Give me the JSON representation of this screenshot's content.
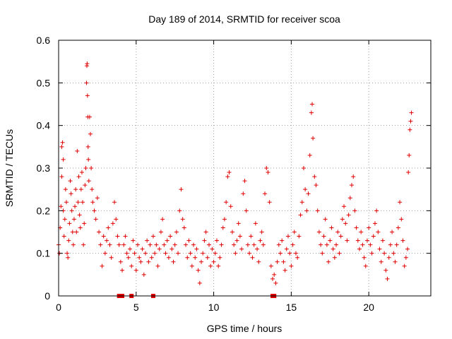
{
  "chart_data": {
    "type": "scatter",
    "title": "Day 189 of 2014, SRMTID for receiver scoa",
    "xlabel": "GPS time / hours",
    "ylabel": "SRMTID / TECUs",
    "xlim": [
      0,
      24
    ],
    "ylim": [
      0,
      0.6
    ],
    "xticks": [
      0,
      5,
      10,
      15,
      20
    ],
    "yticks": [
      0,
      0.1,
      0.2,
      0.3,
      0.4,
      0.5,
      0.6
    ],
    "xtick_labels": [
      "0",
      "5",
      "10",
      "15",
      "20"
    ],
    "ytick_labels": [
      "0",
      "0.1",
      "0.2",
      "0.3",
      "0.4",
      "0.5",
      "0.6"
    ],
    "grid": true,
    "marker": "+",
    "marker_color": "#e00000",
    "baseline_markers": {
      "marker": "square",
      "x": [
        3.9,
        4.1,
        4.7,
        6.1,
        13.8,
        13.9
      ],
      "y": 0
    },
    "series": [
      {
        "name": "SRMTID",
        "points": [
          [
            0.0,
            0.12
          ],
          [
            0.05,
            0.1
          ],
          [
            0.1,
            0.16
          ],
          [
            0.15,
            0.21
          ],
          [
            0.2,
            0.28
          ],
          [
            0.2,
            0.35
          ],
          [
            0.25,
            0.36
          ],
          [
            0.3,
            0.32
          ],
          [
            0.3,
            0.2
          ],
          [
            0.35,
            0.14
          ],
          [
            0.4,
            0.18
          ],
          [
            0.45,
            0.25
          ],
          [
            0.5,
            0.22
          ],
          [
            0.55,
            0.1
          ],
          [
            0.6,
            0.09
          ],
          [
            0.65,
            0.13
          ],
          [
            0.7,
            0.17
          ],
          [
            0.75,
            0.27
          ],
          [
            0.8,
            0.24
          ],
          [
            0.85,
            0.2
          ],
          [
            0.9,
            0.15
          ],
          [
            0.95,
            0.12
          ],
          [
            1.0,
            0.18
          ],
          [
            1.05,
            0.21
          ],
          [
            1.1,
            0.25
          ],
          [
            1.15,
            0.15
          ],
          [
            1.2,
            0.34
          ],
          [
            1.25,
            0.22
          ],
          [
            1.3,
            0.28
          ],
          [
            1.35,
            0.19
          ],
          [
            1.4,
            0.16
          ],
          [
            1.45,
            0.25
          ],
          [
            1.5,
            0.29
          ],
          [
            1.55,
            0.22
          ],
          [
            1.6,
            0.12
          ],
          [
            1.65,
            0.17
          ],
          [
            1.7,
            0.26
          ],
          [
            1.75,
            0.3
          ],
          [
            1.8,
            0.5
          ],
          [
            1.82,
            0.54
          ],
          [
            1.84,
            0.545
          ],
          [
            1.86,
            0.47
          ],
          [
            1.88,
            0.42
          ],
          [
            1.9,
            0.35
          ],
          [
            1.92,
            0.32
          ],
          [
            1.95,
            0.27
          ],
          [
            2.0,
            0.42
          ],
          [
            2.05,
            0.38
          ],
          [
            2.1,
            0.3
          ],
          [
            2.15,
            0.25
          ],
          [
            2.2,
            0.22
          ],
          [
            2.3,
            0.2
          ],
          [
            2.4,
            0.18
          ],
          [
            2.5,
            0.23
          ],
          [
            2.6,
            0.15
          ],
          [
            2.7,
            0.12
          ],
          [
            2.8,
            0.07
          ],
          [
            2.9,
            0.14
          ],
          [
            3.0,
            0.1
          ],
          [
            3.1,
            0.13
          ],
          [
            3.2,
            0.16
          ],
          [
            3.3,
            0.12
          ],
          [
            3.4,
            0.09
          ],
          [
            3.5,
            0.17
          ],
          [
            3.6,
            0.22
          ],
          [
            3.7,
            0.18
          ],
          [
            3.8,
            0.14
          ],
          [
            3.9,
            0.12
          ],
          [
            4.0,
            0.08
          ],
          [
            4.1,
            0.06
          ],
          [
            4.2,
            0.12
          ],
          [
            4.3,
            0.14
          ],
          [
            4.4,
            0.1
          ],
          [
            4.5,
            0.09
          ],
          [
            4.6,
            0.11
          ],
          [
            4.7,
            0.07
          ],
          [
            4.8,
            0.13
          ],
          [
            4.9,
            0.1
          ],
          [
            5.0,
            0.06
          ],
          [
            5.1,
            0.12
          ],
          [
            5.2,
            0.09
          ],
          [
            5.3,
            0.08
          ],
          [
            5.4,
            0.11
          ],
          [
            5.5,
            0.05
          ],
          [
            5.6,
            0.1
          ],
          [
            5.7,
            0.13
          ],
          [
            5.8,
            0.08
          ],
          [
            5.9,
            0.12
          ],
          [
            6.0,
            0.09
          ],
          [
            6.1,
            0.14
          ],
          [
            6.2,
            0.1
          ],
          [
            6.3,
            0.12
          ],
          [
            6.4,
            0.07
          ],
          [
            6.5,
            0.11
          ],
          [
            6.6,
            0.15
          ],
          [
            6.7,
            0.18
          ],
          [
            6.8,
            0.12
          ],
          [
            6.9,
            0.1
          ],
          [
            7.0,
            0.13
          ],
          [
            7.1,
            0.09
          ],
          [
            7.2,
            0.14
          ],
          [
            7.3,
            0.11
          ],
          [
            7.4,
            0.08
          ],
          [
            7.5,
            0.12
          ],
          [
            7.6,
            0.15
          ],
          [
            7.7,
            0.1
          ],
          [
            7.8,
            0.2
          ],
          [
            7.9,
            0.25
          ],
          [
            8.0,
            0.18
          ],
          [
            8.1,
            0.16
          ],
          [
            8.2,
            0.12
          ],
          [
            8.3,
            0.09
          ],
          [
            8.4,
            0.13
          ],
          [
            8.5,
            0.1
          ],
          [
            8.6,
            0.07
          ],
          [
            8.7,
            0.12
          ],
          [
            8.8,
            0.09
          ],
          [
            8.9,
            0.11
          ],
          [
            9.0,
            0.06
          ],
          [
            9.1,
            0.03
          ],
          [
            9.2,
            0.08
          ],
          [
            9.3,
            0.1
          ],
          [
            9.4,
            0.13
          ],
          [
            9.5,
            0.15
          ],
          [
            9.6,
            0.09
          ],
          [
            9.7,
            0.12
          ],
          [
            9.8,
            0.07
          ],
          [
            9.9,
            0.11
          ],
          [
            10.0,
            0.08
          ],
          [
            10.1,
            0.1
          ],
          [
            10.2,
            0.13
          ],
          [
            10.3,
            0.07
          ],
          [
            10.4,
            0.09
          ],
          [
            10.5,
            0.12
          ],
          [
            10.6,
            0.16
          ],
          [
            10.7,
            0.18
          ],
          [
            10.8,
            0.22
          ],
          [
            10.9,
            0.28
          ],
          [
            11.0,
            0.29
          ],
          [
            11.1,
            0.21
          ],
          [
            11.2,
            0.15
          ],
          [
            11.3,
            0.12
          ],
          [
            11.4,
            0.1
          ],
          [
            11.5,
            0.13
          ],
          [
            11.6,
            0.17
          ],
          [
            11.7,
            0.14
          ],
          [
            11.8,
            0.11
          ],
          [
            11.9,
            0.24
          ],
          [
            12.0,
            0.27
          ],
          [
            12.1,
            0.2
          ],
          [
            12.2,
            0.12
          ],
          [
            12.3,
            0.1
          ],
          [
            12.4,
            0.14
          ],
          [
            12.5,
            0.09
          ],
          [
            12.6,
            0.12
          ],
          [
            12.7,
            0.17
          ],
          [
            12.8,
            0.11
          ],
          [
            12.9,
            0.08
          ],
          [
            13.0,
            0.13
          ],
          [
            13.1,
            0.15
          ],
          [
            13.2,
            0.12
          ],
          [
            13.3,
            0.24
          ],
          [
            13.4,
            0.3
          ],
          [
            13.5,
            0.29
          ],
          [
            13.6,
            0.22
          ],
          [
            13.7,
            0.07
          ],
          [
            13.8,
            0.04
          ],
          [
            13.9,
            0.05
          ],
          [
            14.0,
            0.03
          ],
          [
            14.1,
            0.08
          ],
          [
            14.2,
            0.12
          ],
          [
            14.3,
            0.1
          ],
          [
            14.4,
            0.13
          ],
          [
            14.5,
            0.08
          ],
          [
            14.6,
            0.06
          ],
          [
            14.7,
            0.11
          ],
          [
            14.8,
            0.14
          ],
          [
            14.9,
            0.1
          ],
          [
            15.0,
            0.07
          ],
          [
            15.1,
            0.12
          ],
          [
            15.2,
            0.15
          ],
          [
            15.3,
            0.1
          ],
          [
            15.4,
            0.09
          ],
          [
            15.5,
            0.14
          ],
          [
            15.6,
            0.19
          ],
          [
            15.7,
            0.22
          ],
          [
            15.8,
            0.3
          ],
          [
            15.9,
            0.25
          ],
          [
            16.0,
            0.2
          ],
          [
            16.1,
            0.24
          ],
          [
            16.2,
            0.33
          ],
          [
            16.3,
            0.43
          ],
          [
            16.35,
            0.45
          ],
          [
            16.4,
            0.37
          ],
          [
            16.5,
            0.28
          ],
          [
            16.6,
            0.26
          ],
          [
            16.7,
            0.2
          ],
          [
            16.8,
            0.15
          ],
          [
            16.9,
            0.12
          ],
          [
            17.0,
            0.1
          ],
          [
            17.1,
            0.14
          ],
          [
            17.2,
            0.18
          ],
          [
            17.3,
            0.12
          ],
          [
            17.4,
            0.08
          ],
          [
            17.5,
            0.13
          ],
          [
            17.6,
            0.16
          ],
          [
            17.7,
            0.11
          ],
          [
            17.8,
            0.09
          ],
          [
            17.9,
            0.12
          ],
          [
            18.0,
            0.15
          ],
          [
            18.1,
            0.1
          ],
          [
            18.2,
            0.14
          ],
          [
            18.3,
            0.18
          ],
          [
            18.4,
            0.21
          ],
          [
            18.5,
            0.17
          ],
          [
            18.6,
            0.13
          ],
          [
            18.7,
            0.19
          ],
          [
            18.8,
            0.23
          ],
          [
            18.9,
            0.26
          ],
          [
            19.0,
            0.28
          ],
          [
            19.1,
            0.2
          ],
          [
            19.2,
            0.16
          ],
          [
            19.3,
            0.13
          ],
          [
            19.4,
            0.11
          ],
          [
            19.5,
            0.15
          ],
          [
            19.6,
            0.12
          ],
          [
            19.7,
            0.09
          ],
          [
            19.8,
            0.07
          ],
          [
            19.9,
            0.13
          ],
          [
            20.0,
            0.16
          ],
          [
            20.1,
            0.12
          ],
          [
            20.2,
            0.1
          ],
          [
            20.3,
            0.14
          ],
          [
            20.4,
            0.17
          ],
          [
            20.5,
            0.2
          ],
          [
            20.6,
            0.15
          ],
          [
            20.7,
            0.11
          ],
          [
            20.8,
            0.08
          ],
          [
            20.9,
            0.13
          ],
          [
            21.0,
            0.1
          ],
          [
            21.1,
            0.06
          ],
          [
            21.2,
            0.04
          ],
          [
            21.3,
            0.09
          ],
          [
            21.4,
            0.12
          ],
          [
            21.5,
            0.15
          ],
          [
            21.6,
            0.1
          ],
          [
            21.7,
            0.08
          ],
          [
            21.8,
            0.12
          ],
          [
            21.9,
            0.16
          ],
          [
            22.0,
            0.22
          ],
          [
            22.1,
            0.18
          ],
          [
            22.2,
            0.13
          ],
          [
            22.3,
            0.07
          ],
          [
            22.4,
            0.09
          ],
          [
            22.5,
            0.11
          ],
          [
            22.55,
            0.29
          ],
          [
            22.6,
            0.33
          ],
          [
            22.65,
            0.39
          ],
          [
            22.7,
            0.41
          ],
          [
            22.75,
            0.43
          ]
        ]
      }
    ]
  }
}
